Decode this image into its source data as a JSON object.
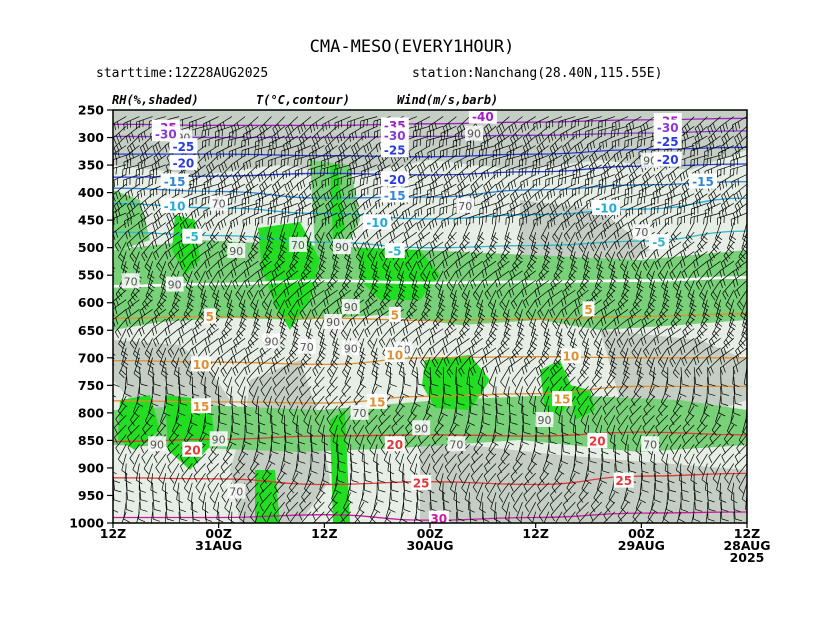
{
  "chart_data": {
    "type": "time-height cross-section",
    "title": "CMA-MESO(EVERY1HOUR)",
    "starttime": "starttime:12Z28AUG2025",
    "station": "station:Nanchang(28.40N,115.55E)",
    "field_labels": {
      "rh": "RH(%,shaded)",
      "temperature": "T(°C,contour)",
      "wind": "Wind(m/s,barb)"
    },
    "y_axis": {
      "label": "",
      "ticks": [
        "250",
        "300",
        "350",
        "400",
        "450",
        "500",
        "550",
        "600",
        "650",
        "700",
        "750",
        "800",
        "850",
        "900",
        "950",
        "1000"
      ],
      "range": [
        250,
        1000
      ],
      "direction": "pressure decreasing upward"
    },
    "x_axis": {
      "label": "",
      "direction": "time increasing to the left",
      "ticks": [
        {
          "hours": 0,
          "l1": "12Z",
          "l2": "28AUG",
          "l3": "2025"
        },
        {
          "hours": 12,
          "l1": "00Z",
          "l2": "29AUG",
          "l3": ""
        },
        {
          "hours": 24,
          "l1": "12Z",
          "l2": "",
          "l3": ""
        },
        {
          "hours": 36,
          "l1": "00Z",
          "l2": "30AUG",
          "l3": ""
        },
        {
          "hours": 48,
          "l1": "12Z",
          "l2": "",
          "l3": ""
        },
        {
          "hours": 60,
          "l1": "00Z",
          "l2": "31AUG",
          "l3": ""
        },
        {
          "hours": 72,
          "l1": "12Z",
          "l2": "",
          "l3": ""
        }
      ],
      "range_hours": [
        0,
        72
      ]
    },
    "rh_shading": {
      "categories": [
        "<70",
        "70-90",
        ">=90"
      ],
      "colors": {
        "low": "#e6eee6",
        "mid": "#c4cec4",
        "high70": "#78d078",
        "high90": "#22dd22"
      }
    },
    "temperature_contours": [
      {
        "value": -35,
        "color": "#a020c0",
        "points": [
          [
            0,
            265
          ],
          [
            12,
            268
          ],
          [
            24,
            272
          ],
          [
            36,
            275
          ],
          [
            48,
            278
          ],
          [
            60,
            278
          ],
          [
            72,
            276
          ]
        ]
      },
      {
        "value": -30,
        "color": "#8a3ad0",
        "points": [
          [
            0,
            288
          ],
          [
            12,
            292
          ],
          [
            24,
            296
          ],
          [
            36,
            298
          ],
          [
            48,
            300
          ],
          [
            60,
            300
          ],
          [
            72,
            298
          ]
        ]
      },
      {
        "value": -25,
        "color": "#2a3ce0",
        "points": [
          [
            0,
            318
          ],
          [
            12,
            322
          ],
          [
            24,
            330
          ],
          [
            36,
            335
          ],
          [
            48,
            333
          ],
          [
            60,
            330
          ],
          [
            72,
            330
          ]
        ]
      },
      {
        "value": -20,
        "color": "#2a3ce0",
        "points": [
          [
            0,
            348
          ],
          [
            12,
            352
          ],
          [
            24,
            362
          ],
          [
            36,
            368
          ],
          [
            48,
            365
          ],
          [
            60,
            370
          ],
          [
            72,
            372
          ]
        ]
      },
      {
        "value": -15,
        "color": "#2f86d8",
        "points": [
          [
            0,
            380
          ],
          [
            12,
            386
          ],
          [
            24,
            395
          ],
          [
            36,
            408
          ],
          [
            48,
            410
          ],
          [
            60,
            398
          ],
          [
            72,
            392
          ]
        ]
      },
      {
        "value": -10,
        "color": "#22aad8",
        "points": [
          [
            0,
            410
          ],
          [
            12,
            430
          ],
          [
            24,
            440
          ],
          [
            36,
            448
          ],
          [
            48,
            438
          ],
          [
            60,
            428
          ],
          [
            72,
            420
          ]
        ]
      },
      {
        "value": -5,
        "color": "#30b8c8",
        "points": [
          [
            0,
            470
          ],
          [
            12,
            488
          ],
          [
            24,
            496
          ],
          [
            36,
            500
          ],
          [
            48,
            490
          ],
          [
            60,
            478
          ],
          [
            72,
            472
          ]
        ]
      },
      {
        "value": 0,
        "color": "#ffffff",
        "points": [
          [
            0,
            554
          ],
          [
            12,
            560
          ],
          [
            24,
            562
          ],
          [
            36,
            564
          ],
          [
            48,
            560
          ],
          [
            60,
            566
          ],
          [
            72,
            570
          ]
        ]
      },
      {
        "value": 5,
        "color": "#e09030",
        "points": [
          [
            0,
            620
          ],
          [
            12,
            625
          ],
          [
            24,
            630
          ],
          [
            36,
            632
          ],
          [
            48,
            628
          ],
          [
            60,
            625
          ],
          [
            72,
            628
          ]
        ]
      },
      {
        "value": 10,
        "color": "#e09030",
        "points": [
          [
            0,
            700
          ],
          [
            12,
            700
          ],
          [
            24,
            698
          ],
          [
            36,
            700
          ],
          [
            48,
            712
          ],
          [
            60,
            708
          ],
          [
            72,
            705
          ]
        ]
      },
      {
        "value": 15,
        "color": "#e09030",
        "points": [
          [
            0,
            752
          ],
          [
            12,
            752
          ],
          [
            24,
            765
          ],
          [
            36,
            770
          ],
          [
            48,
            782
          ],
          [
            60,
            780
          ],
          [
            72,
            778
          ]
        ]
      },
      {
        "value": 20,
        "color": "#e03a3a",
        "points": [
          [
            0,
            840
          ],
          [
            12,
            835
          ],
          [
            24,
            842
          ],
          [
            36,
            840
          ],
          [
            48,
            842
          ],
          [
            60,
            848
          ],
          [
            72,
            852
          ]
        ]
      },
      {
        "value": 25,
        "color": "#e03a3a",
        "points": [
          [
            0,
            910
          ],
          [
            12,
            915
          ],
          [
            24,
            930
          ],
          [
            36,
            925
          ],
          [
            48,
            930
          ],
          [
            60,
            920
          ],
          [
            72,
            918
          ]
        ]
      },
      {
        "value": 30,
        "color": "#cc1aa0",
        "points": [
          [
            0,
            980
          ],
          [
            12,
            982
          ],
          [
            24,
            990
          ],
          [
            36,
            995
          ],
          [
            48,
            985
          ],
          [
            60,
            990
          ],
          [
            72,
            990
          ]
        ]
      }
    ],
    "contour_labels": [
      {
        "text": "-35",
        "color": "#a020c0",
        "h": 66,
        "p": 282
      },
      {
        "text": "-30",
        "color": "#8a3ad0",
        "h": 66,
        "p": 294
      },
      {
        "text": "-25",
        "color": "#2a3ce0",
        "h": 64,
        "p": 316
      },
      {
        "text": "-20",
        "color": "#2a3ce0",
        "h": 64,
        "p": 346
      },
      {
        "text": "-15",
        "color": "#2f86d8",
        "h": 65,
        "p": 380
      },
      {
        "text": "-10",
        "color": "#22aad8",
        "h": 65,
        "p": 424
      },
      {
        "text": "-5",
        "color": "#30b8c8",
        "h": 63,
        "p": 480
      },
      {
        "text": "-35",
        "color": "#a020c0",
        "h": 40,
        "p": 278
      },
      {
        "text": "-30",
        "color": "#8a3ad0",
        "h": 40,
        "p": 296
      },
      {
        "text": "-25",
        "color": "#2a3ce0",
        "h": 40,
        "p": 323
      },
      {
        "text": "-20",
        "color": "#2a3ce0",
        "h": 40,
        "p": 376
      },
      {
        "text": "-15",
        "color": "#2f86d8",
        "h": 40,
        "p": 405
      },
      {
        "text": "-10",
        "color": "#22aad8",
        "h": 42,
        "p": 454
      },
      {
        "text": "-5",
        "color": "#30b8c8",
        "h": 40,
        "p": 506
      },
      {
        "text": "-35",
        "color": "#a020c0",
        "h": 9,
        "p": 270
      },
      {
        "text": "-30",
        "color": "#8a3ad0",
        "h": 9,
        "p": 282
      },
      {
        "text": "-25",
        "color": "#2a3ce0",
        "h": 9,
        "p": 307
      },
      {
        "text": "-20",
        "color": "#2a3ce0",
        "h": 9,
        "p": 340
      },
      {
        "text": "-15",
        "color": "#2f86d8",
        "h": 5,
        "p": 380
      },
      {
        "text": "-10",
        "color": "#22aad8",
        "h": 16,
        "p": 428
      },
      {
        "text": "-5",
        "color": "#30b8c8",
        "h": 10,
        "p": 490
      },
      {
        "text": "5",
        "color": "#e09030",
        "h": 40,
        "p": 622
      },
      {
        "text": "5",
        "color": "#e09030",
        "h": 61,
        "p": 625
      },
      {
        "text": "5",
        "color": "#e09030",
        "h": 18,
        "p": 612
      },
      {
        "text": "10",
        "color": "#e09030",
        "h": 62,
        "p": 712
      },
      {
        "text": "10",
        "color": "#e09030",
        "h": 40,
        "p": 695
      },
      {
        "text": "10",
        "color": "#e09030",
        "h": 20,
        "p": 697
      },
      {
        "text": "15",
        "color": "#e09030",
        "h": 62,
        "p": 788
      },
      {
        "text": "15",
        "color": "#e09030",
        "h": 42,
        "p": 780
      },
      {
        "text": "15",
        "color": "#e09030",
        "h": 21,
        "p": 775
      },
      {
        "text": "20",
        "color": "#e03a3a",
        "h": 63,
        "p": 867
      },
      {
        "text": "20",
        "color": "#e03a3a",
        "h": 40,
        "p": 857
      },
      {
        "text": "20",
        "color": "#e03a3a",
        "h": 17,
        "p": 851
      },
      {
        "text": "25",
        "color": "#e03a3a",
        "h": 37,
        "p": 927
      },
      {
        "text": "25",
        "color": "#e03a3a",
        "h": 14,
        "p": 923
      },
      {
        "text": "30",
        "color": "#cc1aa0",
        "h": 35,
        "p": 992
      },
      {
        "text": "-40",
        "color": "#a020c0",
        "h": 30,
        "p": 262
      }
    ],
    "rh_labels": [
      {
        "text": "90",
        "h": 64,
        "p": 300
      },
      {
        "text": "90",
        "h": 31,
        "p": 293
      },
      {
        "text": "90",
        "h": 11,
        "p": 342
      },
      {
        "text": "70",
        "h": 32,
        "p": 424
      },
      {
        "text": "70",
        "h": 60,
        "p": 420
      },
      {
        "text": "70",
        "h": 12,
        "p": 472
      },
      {
        "text": "70",
        "h": 51,
        "p": 495
      },
      {
        "text": "90",
        "h": 58,
        "p": 506
      },
      {
        "text": "90",
        "h": 46,
        "p": 499
      },
      {
        "text": "70",
        "h": 70,
        "p": 561
      },
      {
        "text": "90",
        "h": 65,
        "p": 567
      },
      {
        "text": "90",
        "h": 45,
        "p": 608
      },
      {
        "text": "90",
        "h": 47,
        "p": 635
      },
      {
        "text": "90",
        "h": 54,
        "p": 670
      },
      {
        "text": "70",
        "h": 50,
        "p": 680
      },
      {
        "text": "90",
        "h": 45,
        "p": 683
      },
      {
        "text": "90",
        "h": 39,
        "p": 685
      },
      {
        "text": "90",
        "h": 37,
        "p": 828
      },
      {
        "text": "70",
        "h": 44,
        "p": 800
      },
      {
        "text": "90",
        "h": 67,
        "p": 857
      },
      {
        "text": "90",
        "h": 60,
        "p": 848
      },
      {
        "text": "90",
        "h": 23,
        "p": 813
      },
      {
        "text": "70",
        "h": 33,
        "p": 857
      },
      {
        "text": "70",
        "h": 11,
        "p": 857
      },
      {
        "text": "70",
        "h": 58,
        "p": 943
      }
    ]
  },
  "colors": {
    "background": "#ffffff",
    "axis": "#000000",
    "barb": "#000000"
  }
}
